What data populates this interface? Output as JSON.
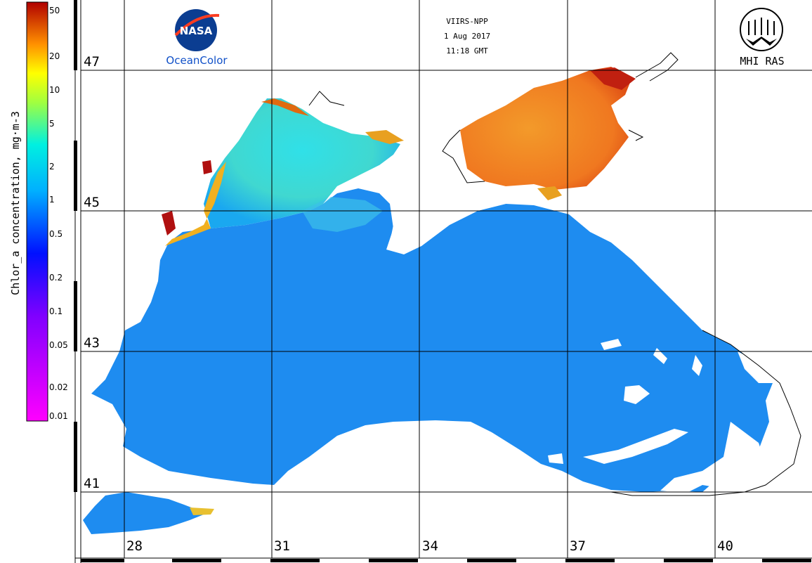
{
  "colorbar": {
    "title": "Chlor_a concentration, mg·m-3",
    "ticks": [
      "50",
      "20",
      "10",
      "5",
      "2",
      "1",
      "0.5",
      "0.2",
      "0.1",
      "0.05",
      "0.02",
      "0.01"
    ]
  },
  "header": {
    "sensor": "VIIRS-NPP",
    "date": "1 Aug 2017",
    "time": "11:18 GMT",
    "left_logo_text": "NASA",
    "left_logo_caption": "OceanColor",
    "right_logo_caption": "MHI RAS"
  },
  "grid": {
    "lat_labels": [
      "47",
      "45",
      "43",
      "41"
    ],
    "lon_labels": [
      "28",
      "31",
      "34",
      "37",
      "40"
    ]
  },
  "colors": {
    "low": "#ff00ff",
    "mid_low": "#0040ff",
    "mid": "#00e0ff",
    "mid_high": "#ffff00",
    "high": "#cc0000",
    "sea_main": "#1e8cf0",
    "azov": "#f07820",
    "land": "#ffffff"
  }
}
